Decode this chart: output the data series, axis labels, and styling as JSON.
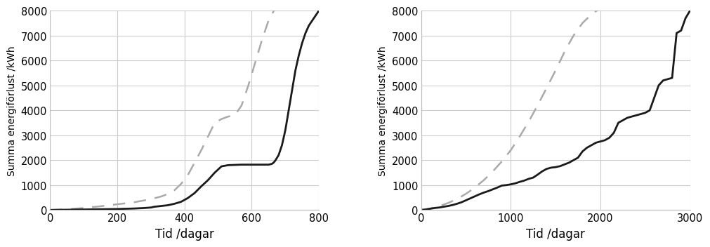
{
  "ylabel": "Summa energiförlust /kWh",
  "xlabel": "Tid /dagar",
  "background_color": "#ffffff",
  "grid_color": "#cccccc",
  "text_color": "#000000",
  "solid_color": "#1a1a1a",
  "dashed_color": "#aaaaaa",
  "chart1": {
    "xlim": [
      0,
      800
    ],
    "ylim": [
      0,
      8000
    ],
    "xticks": [
      0,
      200,
      400,
      600,
      800
    ],
    "yticks": [
      0,
      1000,
      2000,
      3000,
      4000,
      5000,
      6000,
      7000,
      8000
    ],
    "solid_x": [
      0,
      50,
      100,
      150,
      200,
      250,
      280,
      300,
      310,
      330,
      350,
      370,
      390,
      410,
      430,
      450,
      470,
      490,
      510,
      530,
      550,
      570,
      590,
      610,
      630,
      650,
      660,
      665,
      670,
      680,
      690,
      700,
      710,
      720,
      730,
      740,
      750,
      760,
      770,
      780,
      790,
      800
    ],
    "solid_y": [
      0,
      10,
      20,
      30,
      40,
      60,
      80,
      100,
      130,
      160,
      190,
      250,
      330,
      480,
      680,
      950,
      1200,
      1500,
      1750,
      1800,
      1810,
      1820,
      1820,
      1820,
      1820,
      1820,
      1850,
      1900,
      1980,
      2200,
      2600,
      3200,
      4000,
      4800,
      5600,
      6200,
      6700,
      7100,
      7400,
      7600,
      7800,
      8000
    ],
    "dashed_x": [
      0,
      50,
      100,
      150,
      200,
      250,
      270,
      290,
      310,
      330,
      350,
      370,
      390,
      410,
      430,
      450,
      470,
      490,
      510,
      530,
      550,
      570,
      590,
      610,
      630,
      650,
      670,
      680
    ],
    "dashed_y": [
      0,
      30,
      80,
      150,
      230,
      310,
      360,
      410,
      470,
      540,
      640,
      790,
      1050,
      1400,
      1900,
      2400,
      2950,
      3500,
      3650,
      3750,
      3800,
      4200,
      5000,
      5900,
      6800,
      7600,
      8100,
      8200
    ]
  },
  "chart2": {
    "xlim": [
      0,
      3000
    ],
    "ylim": [
      0,
      8000
    ],
    "xticks": [
      0,
      1000,
      2000,
      3000
    ],
    "yticks": [
      0,
      1000,
      2000,
      3000,
      4000,
      5000,
      6000,
      7000,
      8000
    ],
    "solid_x": [
      0,
      50,
      100,
      150,
      200,
      250,
      300,
      350,
      400,
      450,
      500,
      550,
      600,
      650,
      700,
      750,
      800,
      850,
      900,
      950,
      1000,
      1050,
      1100,
      1150,
      1200,
      1250,
      1300,
      1350,
      1400,
      1450,
      1500,
      1550,
      1600,
      1650,
      1700,
      1750,
      1800,
      1850,
      1900,
      1950,
      2000,
      2050,
      2100,
      2150,
      2200,
      2250,
      2300,
      2350,
      2400,
      2450,
      2500,
      2550,
      2600,
      2650,
      2700,
      2750,
      2800,
      2850,
      2900,
      2950,
      3000
    ],
    "solid_y": [
      0,
      20,
      50,
      80,
      100,
      130,
      160,
      200,
      250,
      310,
      390,
      470,
      550,
      630,
      700,
      760,
      830,
      900,
      980,
      1000,
      1030,
      1070,
      1130,
      1180,
      1250,
      1300,
      1420,
      1550,
      1650,
      1700,
      1720,
      1760,
      1830,
      1900,
      2000,
      2100,
      2350,
      2500,
      2600,
      2700,
      2750,
      2800,
      2900,
      3100,
      3500,
      3600,
      3700,
      3750,
      3800,
      3850,
      3900,
      4000,
      4500,
      5000,
      5200,
      5250,
      5300,
      7100,
      7200,
      7700,
      8000
    ],
    "dashed_x": [
      0,
      100,
      200,
      300,
      400,
      500,
      600,
      700,
      800,
      900,
      1000,
      1100,
      1200,
      1300,
      1400,
      1500,
      1600,
      1700,
      1800,
      1900,
      2000
    ],
    "dashed_y": [
      0,
      60,
      150,
      280,
      440,
      650,
      900,
      1200,
      1550,
      1950,
      2400,
      2950,
      3550,
      4200,
      4900,
      5600,
      6350,
      7000,
      7500,
      7850,
      8100
    ]
  }
}
